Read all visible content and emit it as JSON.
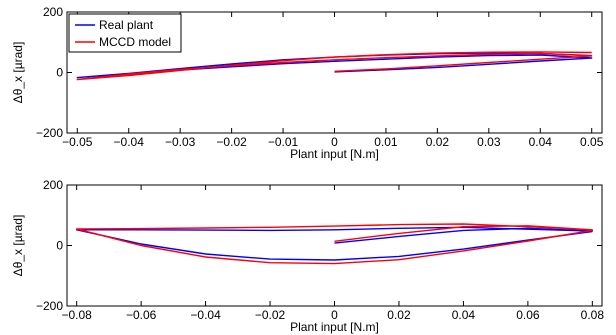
{
  "chart_data": [
    {
      "type": "line",
      "title": "",
      "xlabel": "Plant input [N.m]",
      "ylabel": "Δθ_x  [µrad]",
      "xlim": [
        -0.052,
        0.052
      ],
      "ylim": [
        -200,
        200
      ],
      "xticks": [
        -0.05,
        -0.04,
        -0.03,
        -0.02,
        -0.01,
        0,
        0.01,
        0.02,
        0.03,
        0.04,
        0.05
      ],
      "xtick_labels": [
        "−0.05",
        "−0.04",
        "−0.03",
        "−0.02",
        "−0.01",
        "0",
        "0.01",
        "0.02",
        "0.03",
        "0.04",
        "0.05"
      ],
      "yticks": [
        -200,
        0,
        200
      ],
      "ytick_labels": [
        "−200",
        "0",
        "200"
      ],
      "grid": false,
      "legend": "top-left",
      "series": [
        {
          "name": "Real plant",
          "color": "#0000ff",
          "x": [
            0,
            0.01,
            0.02,
            0.03,
            0.04,
            0.05,
            0.04,
            0.03,
            0.02,
            0.01,
            0,
            -0.01,
            -0.02,
            -0.03,
            -0.04,
            -0.05,
            -0.04,
            -0.03,
            -0.02,
            -0.01,
            0,
            0.01,
            0.02,
            0.03,
            0.04,
            0.05
          ],
          "y": [
            2,
            9,
            17,
            27,
            38,
            48,
            58,
            56,
            51,
            44,
            37,
            29,
            19,
            8,
            -4,
            -17,
            -3,
            13,
            28,
            42,
            51,
            58,
            62,
            64,
            63,
            56
          ]
        },
        {
          "name": "MCCD model",
          "color": "#ff0000",
          "x": [
            0,
            0.01,
            0.02,
            0.03,
            0.04,
            0.05,
            0.04,
            0.03,
            0.02,
            0.01,
            0,
            -0.01,
            -0.02,
            -0.03,
            -0.04,
            -0.05,
            -0.04,
            -0.03,
            -0.02,
            -0.01,
            0,
            0.01,
            0.02,
            0.03,
            0.04,
            0.05
          ],
          "y": [
            4,
            12,
            22,
            33,
            44,
            55,
            63,
            60,
            55,
            49,
            42,
            33,
            22,
            10,
            -5,
            -23,
            -10,
            7,
            24,
            39,
            51,
            59,
            64,
            67,
            68,
            66
          ]
        }
      ]
    },
    {
      "type": "line",
      "title": "",
      "xlabel": "Plant input [N.m]",
      "ylabel": "Δθ_x  [µrad]",
      "xlim": [
        -0.083,
        0.083
      ],
      "ylim": [
        -200,
        200
      ],
      "xticks": [
        -0.08,
        -0.06,
        -0.04,
        -0.02,
        0,
        0.02,
        0.04,
        0.06,
        0.08
      ],
      "xtick_labels": [
        "−0.08",
        "−0.06",
        "−0.04",
        "−0.02",
        "0",
        "0.02",
        "0.04",
        "0.06",
        "0.08"
      ],
      "yticks": [
        -200,
        0,
        200
      ],
      "ytick_labels": [
        "−200",
        "0",
        "200"
      ],
      "grid": false,
      "legend": "none",
      "series": [
        {
          "name": "Real plant",
          "color": "#0000ff",
          "x": [
            0,
            0.02,
            0.04,
            0.06,
            0.08,
            0.06,
            0.04,
            0.02,
            0,
            -0.02,
            -0.04,
            -0.06,
            -0.08,
            -0.06,
            -0.04,
            -0.02,
            0,
            0.02,
            0.04,
            0.06,
            0.08
          ],
          "y": [
            8,
            30,
            50,
            57,
            48,
            54,
            60,
            57,
            52,
            50,
            51,
            52,
            52,
            5,
            -28,
            -45,
            -48,
            -36,
            -12,
            18,
            46
          ],
          "name_hidden": true
        },
        {
          "name": "MCCD model",
          "color": "#ff0000",
          "x": [
            0,
            0.02,
            0.04,
            0.06,
            0.08,
            0.06,
            0.04,
            0.02,
            0,
            -0.02,
            -0.04,
            -0.06,
            -0.08,
            -0.06,
            -0.04,
            -0.02,
            0,
            0.02,
            0.04,
            0.06,
            0.08
          ],
          "y": [
            14,
            40,
            62,
            65,
            52,
            62,
            71,
            69,
            64,
            60,
            58,
            56,
            55,
            0,
            -38,
            -57,
            -60,
            -47,
            -18,
            15,
            50
          ],
          "name_hidden": true
        }
      ]
    }
  ]
}
